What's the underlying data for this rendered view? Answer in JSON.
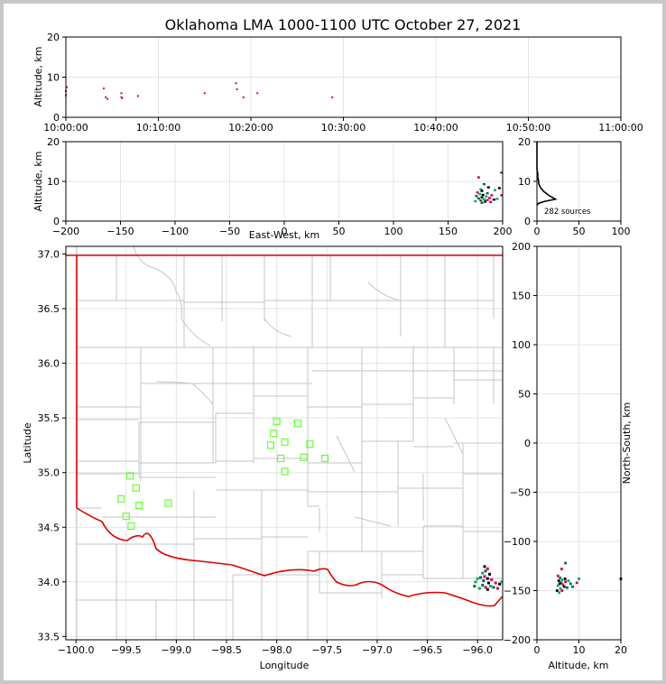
{
  "title": "Oklahoma LMA 1000-1100 UTC October 27, 2021",
  "chart_data": [
    {
      "panel": "time-height",
      "type": "scatter",
      "ylabel": "Altitude, km",
      "ylim": [
        0,
        20
      ],
      "y_ticks": [
        "0",
        "10",
        "20"
      ],
      "x_ticks": [
        "10:00:00",
        "10:10:00",
        "10:20:00",
        "10:30:00",
        "10:40:00",
        "10:50:00",
        "11:00:00"
      ],
      "points": [
        {
          "t_min": 0.0,
          "alt": 5.5
        },
        {
          "t_min": 0.0,
          "alt": 6.5
        },
        {
          "t_min": 0.1,
          "alt": 7.5
        },
        {
          "t_min": 4.1,
          "alt": 7.2
        },
        {
          "t_min": 4.3,
          "alt": 5.0
        },
        {
          "t_min": 4.5,
          "alt": 4.6
        },
        {
          "t_min": 6.0,
          "alt": 6.0
        },
        {
          "t_min": 6.0,
          "alt": 5.0
        },
        {
          "t_min": 6.1,
          "alt": 4.8
        },
        {
          "t_min": 7.8,
          "alt": 5.3
        },
        {
          "t_min": 15.0,
          "alt": 6.0
        },
        {
          "t_min": 18.4,
          "alt": 8.5
        },
        {
          "t_min": 18.5,
          "alt": 7.0
        },
        {
          "t_min": 19.2,
          "alt": 5.0
        },
        {
          "t_min": 20.7,
          "alt": 6.0
        },
        {
          "t_min": 28.8,
          "alt": 5.0
        }
      ]
    },
    {
      "panel": "east-west-height",
      "type": "scatter",
      "xlabel": "East-West, km",
      "ylabel": "Altitude, km",
      "xlim": [
        -200,
        200
      ],
      "ylim": [
        0,
        20
      ],
      "x_ticks": [
        "−200",
        "−150",
        "−100",
        "−50",
        "0",
        "50",
        "100",
        "150",
        "200"
      ],
      "y_ticks": [
        "0",
        "10",
        "20"
      ],
      "points": [
        {
          "x": 178,
          "y": 11.0
        },
        {
          "x": 183,
          "y": 9.3
        },
        {
          "x": 180,
          "y": 8.0
        },
        {
          "x": 181,
          "y": 7.6
        },
        {
          "x": 177,
          "y": 7.2
        },
        {
          "x": 186,
          "y": 7.0
        },
        {
          "x": 179,
          "y": 6.8
        },
        {
          "x": 182,
          "y": 6.6
        },
        {
          "x": 190,
          "y": 6.5
        },
        {
          "x": 176,
          "y": 6.3
        },
        {
          "x": 185,
          "y": 6.2
        },
        {
          "x": 181,
          "y": 6.0
        },
        {
          "x": 188,
          "y": 5.8
        },
        {
          "x": 178,
          "y": 5.7
        },
        {
          "x": 183,
          "y": 5.5
        },
        {
          "x": 192,
          "y": 5.4
        },
        {
          "x": 186,
          "y": 5.3
        },
        {
          "x": 180,
          "y": 5.2
        },
        {
          "x": 175,
          "y": 5.0
        },
        {
          "x": 184,
          "y": 4.9
        },
        {
          "x": 189,
          "y": 4.8
        },
        {
          "x": 181,
          "y": 4.6
        },
        {
          "x": 195,
          "y": 5.6
        },
        {
          "x": 197,
          "y": 8.3
        },
        {
          "x": 199,
          "y": 6.5
        },
        {
          "x": 199,
          "y": 12.2
        },
        {
          "x": 193,
          "y": 7.8
        },
        {
          "x": 187,
          "y": 8.5
        }
      ]
    },
    {
      "panel": "altitude-histogram",
      "type": "line",
      "xlim": [
        0,
        100
      ],
      "ylim": [
        0,
        20
      ],
      "x_ticks": [
        "0",
        "50",
        "100"
      ],
      "y_ticks": [
        "0",
        "10",
        "20"
      ],
      "annotation": "282 sources",
      "profile": [
        {
          "alt": 4.0,
          "count": 0
        },
        {
          "alt": 4.5,
          "count": 2
        },
        {
          "alt": 5.0,
          "count": 10
        },
        {
          "alt": 5.5,
          "count": 22
        },
        {
          "alt": 6.0,
          "count": 18
        },
        {
          "alt": 6.5,
          "count": 14
        },
        {
          "alt": 7.0,
          "count": 11
        },
        {
          "alt": 7.5,
          "count": 8
        },
        {
          "alt": 8.0,
          "count": 6
        },
        {
          "alt": 8.5,
          "count": 4
        },
        {
          "alt": 9.0,
          "count": 3
        },
        {
          "alt": 9.5,
          "count": 2
        },
        {
          "alt": 10.0,
          "count": 2
        },
        {
          "alt": 11.0,
          "count": 1
        },
        {
          "alt": 12.0,
          "count": 1
        },
        {
          "alt": 13.0,
          "count": 0
        },
        {
          "alt": 15.0,
          "count": 0
        },
        {
          "alt": 17.0,
          "count": 0
        },
        {
          "alt": 20.0,
          "count": 0
        }
      ]
    },
    {
      "panel": "plan-view",
      "type": "scatter",
      "xlabel": "Longitude",
      "ylabel": "Latitude",
      "xlim": [
        -100.1,
        -95.75
      ],
      "ylim": [
        33.47,
        37.07
      ],
      "x_ticks": [
        "−100.0",
        "−99.5",
        "−99.0",
        "−98.5",
        "−98.0",
        "−97.5",
        "−97.0",
        "−96.5",
        "−96.0"
      ],
      "y_ticks": [
        "33.5",
        "34.0",
        "34.5",
        "35.0",
        "35.5",
        "36.0",
        "36.5",
        "37.0"
      ],
      "stations": [
        {
          "lon": -99.46,
          "lat": 34.97
        },
        {
          "lon": -99.4,
          "lat": 34.86
        },
        {
          "lon": -99.55,
          "lat": 34.76
        },
        {
          "lon": -99.37,
          "lat": 34.7
        },
        {
          "lon": -99.08,
          "lat": 34.72
        },
        {
          "lon": -99.5,
          "lat": 34.6
        },
        {
          "lon": -99.45,
          "lat": 34.51
        },
        {
          "lon": -98.0,
          "lat": 35.47
        },
        {
          "lon": -97.79,
          "lat": 35.45
        },
        {
          "lon": -98.03,
          "lat": 35.36
        },
        {
          "lon": -97.92,
          "lat": 35.28
        },
        {
          "lon": -98.06,
          "lat": 35.25
        },
        {
          "lon": -97.67,
          "lat": 35.26
        },
        {
          "lon": -97.96,
          "lat": 35.13
        },
        {
          "lon": -97.73,
          "lat": 35.14
        },
        {
          "lon": -97.52,
          "lat": 35.13
        },
        {
          "lon": -97.92,
          "lat": 35.01
        }
      ],
      "sources": [
        {
          "lon": -95.9,
          "lat": 34.12
        },
        {
          "lon": -95.92,
          "lat": 34.1
        },
        {
          "lon": -95.95,
          "lat": 34.08
        },
        {
          "lon": -95.88,
          "lat": 34.07
        },
        {
          "lon": -95.93,
          "lat": 34.05
        },
        {
          "lon": -95.97,
          "lat": 34.04
        },
        {
          "lon": -96.0,
          "lat": 34.03
        },
        {
          "lon": -95.9,
          "lat": 34.03
        },
        {
          "lon": -95.86,
          "lat": 34.02
        },
        {
          "lon": -95.94,
          "lat": 34.01
        },
        {
          "lon": -96.02,
          "lat": 34.0
        },
        {
          "lon": -95.89,
          "lat": 33.99
        },
        {
          "lon": -95.82,
          "lat": 33.99
        },
        {
          "lon": -95.95,
          "lat": 33.97
        },
        {
          "lon": -95.87,
          "lat": 33.96
        },
        {
          "lon": -95.78,
          "lat": 33.98
        },
        {
          "lon": -95.92,
          "lat": 33.95
        },
        {
          "lon": -95.84,
          "lat": 33.95
        },
        {
          "lon": -95.98,
          "lat": 33.94
        },
        {
          "lon": -95.9,
          "lat": 33.93
        },
        {
          "lon": -95.8,
          "lat": 33.94
        },
        {
          "lon": -96.03,
          "lat": 33.96
        },
        {
          "lon": -95.76,
          "lat": 34.0
        },
        {
          "lon": -95.93,
          "lat": 34.14
        }
      ]
    },
    {
      "panel": "north-south-height",
      "type": "scatter",
      "xlabel": "Altitude, km",
      "ylabel": "North-South, km",
      "xlim": [
        0,
        20
      ],
      "ylim": [
        -200,
        200
      ],
      "x_ticks": [
        "0",
        "10",
        "20"
      ],
      "y_ticks": [
        "−200",
        "−150",
        "−100",
        "−50",
        "0",
        "50",
        "100",
        "150",
        "200"
      ],
      "points": [
        {
          "alt": 5.0,
          "ns": -135
        },
        {
          "alt": 5.5,
          "ns": -137
        },
        {
          "alt": 6.0,
          "ns": -139
        },
        {
          "alt": 5.2,
          "ns": -140
        },
        {
          "alt": 6.8,
          "ns": -141
        },
        {
          "alt": 5.8,
          "ns": -142
        },
        {
          "alt": 7.5,
          "ns": -140
        },
        {
          "alt": 5.4,
          "ns": -143
        },
        {
          "alt": 6.2,
          "ns": -144
        },
        {
          "alt": 8.0,
          "ns": -143
        },
        {
          "alt": 5.0,
          "ns": -145
        },
        {
          "alt": 6.5,
          "ns": -146
        },
        {
          "alt": 9.5,
          "ns": -142
        },
        {
          "alt": 7.2,
          "ns": -147
        },
        {
          "alt": 5.6,
          "ns": -148
        },
        {
          "alt": 4.8,
          "ns": -150
        },
        {
          "alt": 6.0,
          "ns": -150
        },
        {
          "alt": 8.5,
          "ns": -146
        },
        {
          "alt": 5.3,
          "ns": -152
        },
        {
          "alt": 6.7,
          "ns": -138
        },
        {
          "alt": 5.9,
          "ns": -128
        },
        {
          "alt": 6.8,
          "ns": -122
        },
        {
          "alt": 10.0,
          "ns": -138
        },
        {
          "alt": 20.0,
          "ns": -138
        }
      ]
    }
  ]
}
